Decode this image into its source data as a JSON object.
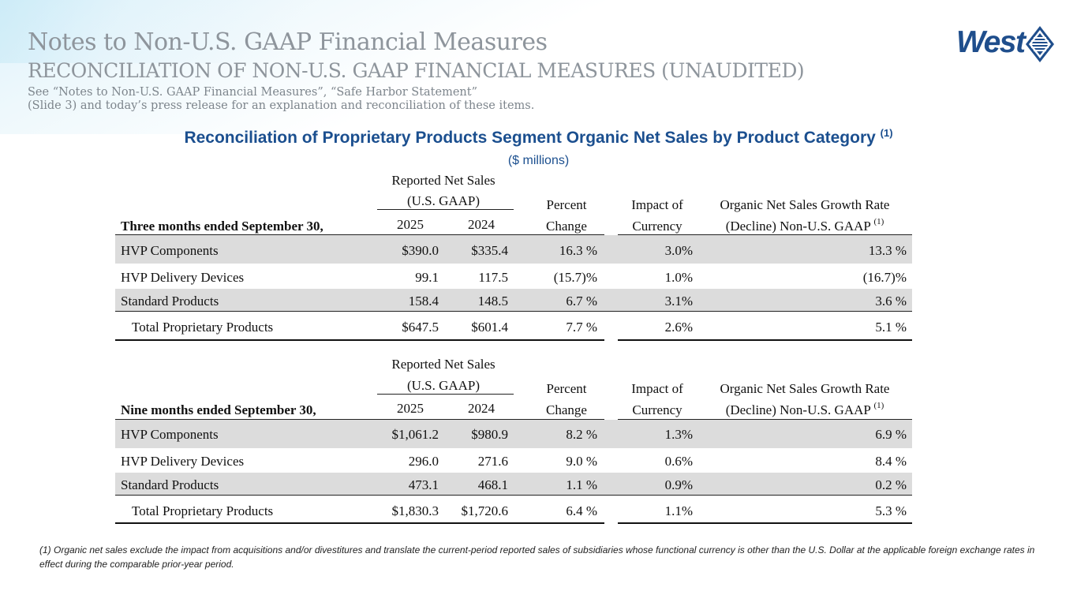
{
  "header": {
    "title": "Notes to Non-U.S. GAAP Financial Measures",
    "subtitle": "RECONCILIATION OF NON-U.S. GAAP FINANCIAL MEASURES (UNAUDITED)",
    "note_line1": "See “Notes to Non-U.S. GAAP Financial Measures”, “Safe Harbor Statement”",
    "note_line2": "(Slide 3) and today’s press release for an explanation and reconciliation of these items."
  },
  "logo": {
    "text": "West",
    "color": "#1f4e8c"
  },
  "heading": {
    "text": "Reconciliation of Proprietary Products Segment Organic Net Sales by Product Category ",
    "footnote_mark": "(1)",
    "units": "($ millions)"
  },
  "columns": {
    "reported_line1": "Reported Net Sales",
    "reported_line2": "(U.S. GAAP)",
    "year1": "2025",
    "year2": "2024",
    "percent_line1": "Percent",
    "percent_line2": "Change",
    "impact_line1": "Impact of",
    "impact_line2": "Currency",
    "organic_line1": "Organic Net Sales Growth Rate",
    "organic_line2": "(Decline) Non-U.S. GAAP ",
    "organic_mark": "(1)"
  },
  "three_months": {
    "period_label": "Three months ended September 30,",
    "rows": [
      {
        "label": "HVP Components",
        "v2025": "$390.0",
        "v2024": "$335.4",
        "pct": "16.3 %",
        "fx": "3.0%",
        "organic": "13.3 %"
      },
      {
        "label": "HVP Delivery Devices",
        "v2025": "99.1",
        "v2024": "117.5",
        "pct": "(15.7)%",
        "fx": "1.0%",
        "organic": "(16.7)%"
      },
      {
        "label": "Standard Products",
        "v2025": "158.4",
        "v2024": "148.5",
        "pct": "6.7 %",
        "fx": "3.1%",
        "organic": "3.6 %"
      },
      {
        "label": "Total Proprietary Products",
        "v2025": "$647.5",
        "v2024": "$601.4",
        "pct": "7.7 %",
        "fx": "2.6%",
        "organic": "5.1 %"
      }
    ]
  },
  "nine_months": {
    "period_label": "Nine months ended September 30,",
    "rows": [
      {
        "label": "HVP Components",
        "v2025": "$1,061.2",
        "v2024": "$980.9",
        "pct": "8.2 %",
        "fx": "1.3%",
        "organic": "6.9 %"
      },
      {
        "label": "HVP Delivery Devices",
        "v2025": "296.0",
        "v2024": "271.6",
        "pct": "9.0 %",
        "fx": "0.6%",
        "organic": "8.4 %"
      },
      {
        "label": "Standard Products",
        "v2025": "473.1",
        "v2024": "468.1",
        "pct": "1.1 %",
        "fx": "0.9%",
        "organic": "0.2 %"
      },
      {
        "label": "Total Proprietary Products",
        "v2025": "$1,830.3",
        "v2024": "$1,720.6",
        "pct": "6.4 %",
        "fx": "1.1%",
        "organic": "5.3 %"
      }
    ]
  },
  "footnote": "(1)  Organic net sales exclude the impact from acquisitions and/or divestitures and translate the current-period reported sales of subsidiaries whose functional currency is other than the U.S. Dollar at the applicable foreign exchange rates in effect during the comparable prior-year period."
}
